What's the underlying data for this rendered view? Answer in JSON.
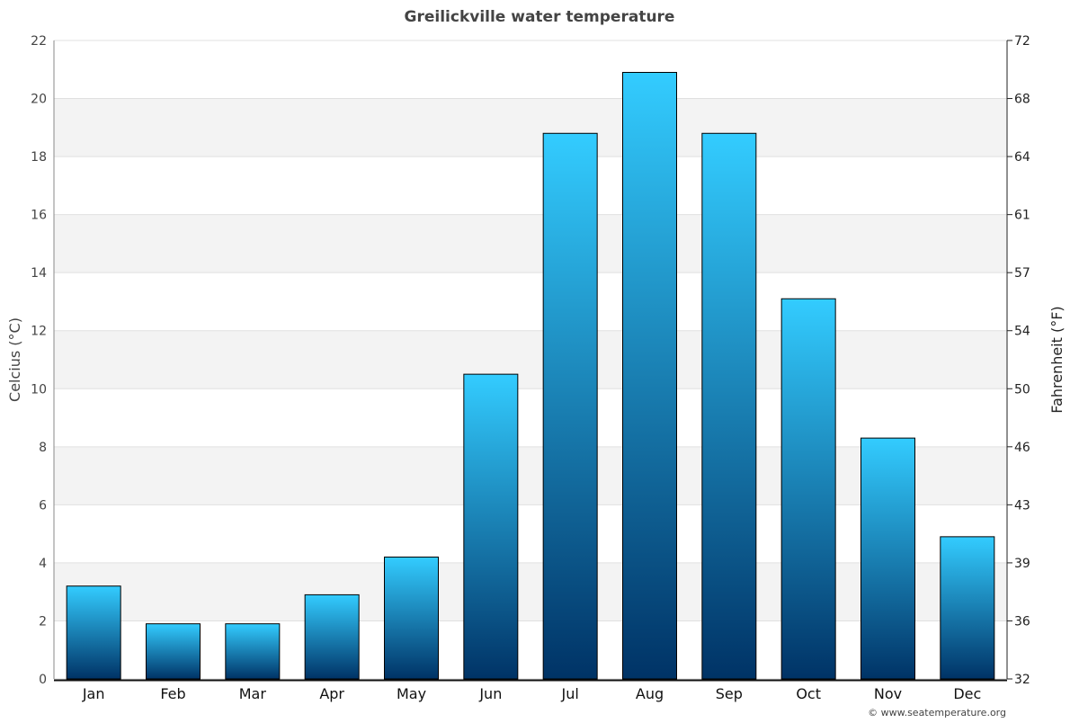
{
  "chart_data": {
    "type": "bar",
    "title": "Greilickville water temperature",
    "ylabel": "Celcius (°C)",
    "y2label": "Fahrenheit (°F)",
    "xlabel": "",
    "categories": [
      "Jan",
      "Feb",
      "Mar",
      "Apr",
      "May",
      "Jun",
      "Jul",
      "Aug",
      "Sep",
      "Oct",
      "Nov",
      "Dec"
    ],
    "values": [
      3.2,
      1.9,
      1.9,
      2.9,
      4.2,
      10.5,
      18.8,
      20.9,
      18.8,
      13.1,
      8.3,
      4.9
    ],
    "ylim": [
      0,
      22
    ],
    "yticks": [
      "0",
      "2",
      "4",
      "6",
      "8",
      "10",
      "12",
      "14",
      "16",
      "18",
      "20",
      "22"
    ],
    "y2ticks": [
      "32",
      "36",
      "39",
      "43",
      "46",
      "50",
      "54",
      "57",
      "61",
      "64",
      "68",
      "72"
    ],
    "grid": true,
    "bar_gradient": [
      "#33ccff",
      "#003366"
    ],
    "band_color": "#f3f3f3"
  },
  "footer": {
    "credit": "© www.seatemperature.org"
  }
}
